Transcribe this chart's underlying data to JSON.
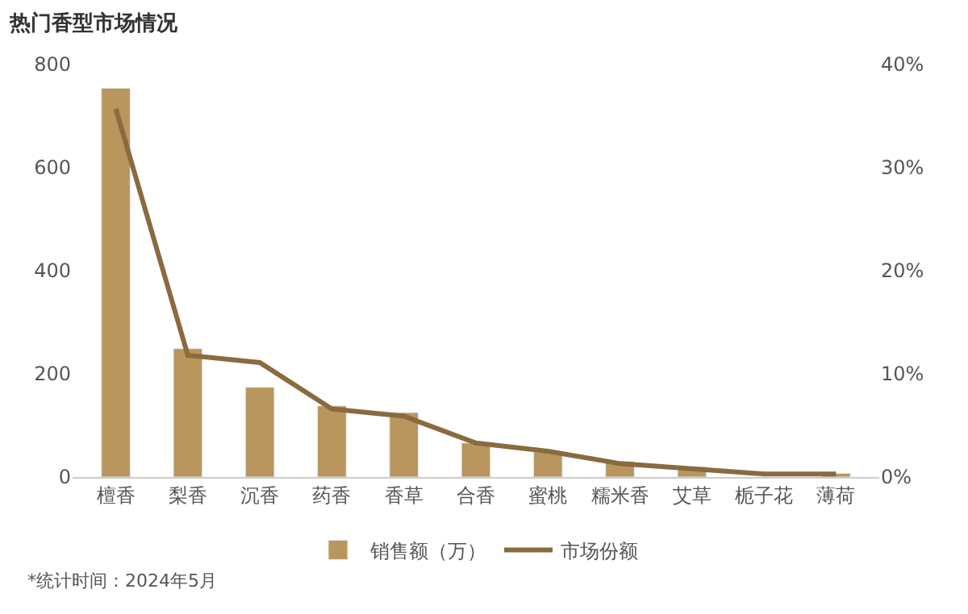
{
  "chart_data": {
    "type": "bar",
    "title": "热门香型市场情况",
    "categories": [
      "檀香",
      "梨香",
      "沉香",
      "药香",
      "香草",
      "合香",
      "蜜桃",
      "糯米香",
      "艾草",
      "栀子花",
      "薄荷"
    ],
    "series": [
      {
        "name": "销售额（万）",
        "color": "#b8965e",
        "values": [
          754,
          249,
          174,
          138,
          125,
          66,
          49,
          30,
          20,
          null,
          7
        ]
      },
      {
        "name": "市场份额",
        "type": "line",
        "axis": "y2",
        "color": "#8a6a3e",
        "values": [
          35.7,
          11.8,
          11.1,
          6.6,
          5.9,
          3.3,
          2.5,
          1.3,
          0.8,
          0.3,
          0.3
        ]
      }
    ],
    "ylim": [
      0,
      800
    ],
    "yticks": [
      0,
      200,
      400,
      600,
      800
    ],
    "y2lim": [
      0,
      40
    ],
    "y2ticks": [
      {
        "value": 0,
        "label": "0%"
      },
      {
        "value": 10,
        "label": "10%"
      },
      {
        "value": 20,
        "label": "20%"
      },
      {
        "value": 30,
        "label": "30%"
      },
      {
        "value": 40,
        "label": "40%"
      }
    ],
    "legend": "bottom",
    "marker": "none",
    "line_style": "solid",
    "annotations": [
      "*统计时间：2024年5月"
    ]
  }
}
